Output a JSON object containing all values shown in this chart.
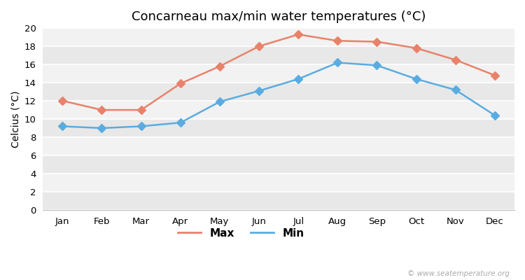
{
  "title": "Concarneau max/min water temperatures (°C)",
  "ylabel": "Celcius (°C)",
  "months": [
    "Jan",
    "Feb",
    "Mar",
    "Apr",
    "May",
    "Jun",
    "Jul",
    "Aug",
    "Sep",
    "Oct",
    "Nov",
    "Dec"
  ],
  "max_values": [
    12.0,
    11.0,
    11.0,
    13.9,
    15.8,
    18.0,
    19.3,
    18.6,
    18.5,
    17.8,
    16.5,
    14.8
  ],
  "min_values": [
    9.2,
    9.0,
    9.2,
    9.6,
    11.9,
    13.1,
    14.4,
    16.2,
    15.9,
    14.4,
    13.2,
    10.4
  ],
  "max_color": "#e8826a",
  "min_color": "#5aace0",
  "max_label": "Max",
  "min_label": "Min",
  "ylim": [
    0,
    20
  ],
  "yticks": [
    0,
    2,
    4,
    6,
    8,
    10,
    12,
    14,
    16,
    18,
    20
  ],
  "background_color": "#ffffff",
  "plot_bg_color": "#f2f2f2",
  "band_color_dark": "#e8e8e8",
  "band_color_light": "#f2f2f2",
  "grid_color": "#ffffff",
  "watermark": "© www.seatemperature.org",
  "title_fontsize": 13,
  "label_fontsize": 10,
  "tick_fontsize": 9.5,
  "marker": "D",
  "markersize": 6,
  "linewidth": 1.8
}
